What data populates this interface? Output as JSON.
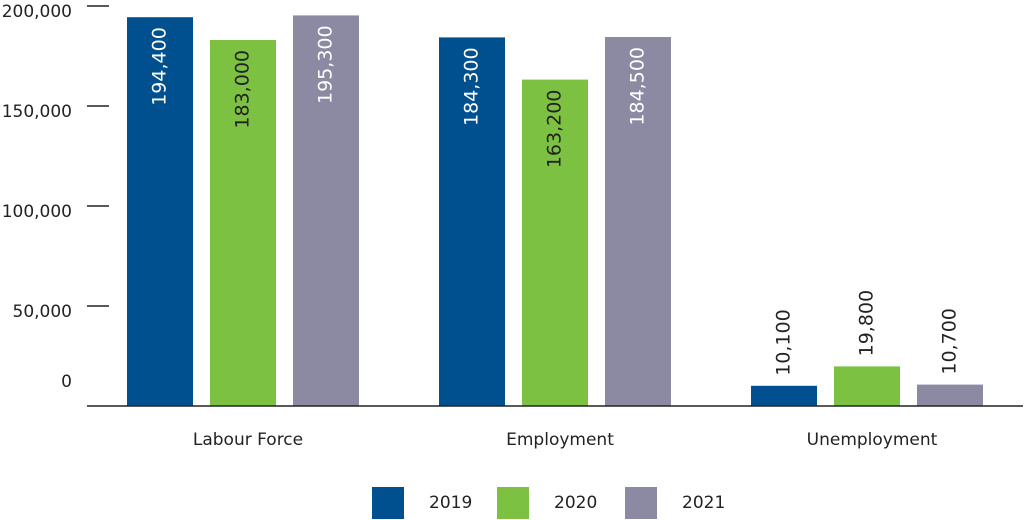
{
  "chart_data": {
    "type": "bar",
    "categories": [
      "Labour Force",
      "Employment",
      "Unemployment"
    ],
    "series": [
      {
        "name": "2019",
        "color": "#00508f",
        "values": [
          194400,
          184300,
          10100
        ],
        "value_labels": [
          "194,400",
          "184,300",
          "10,100"
        ]
      },
      {
        "name": "2020",
        "color": "#7cc142",
        "values": [
          183000,
          163200,
          19800
        ],
        "value_labels": [
          "183,000",
          "163,200",
          "19,800"
        ]
      },
      {
        "name": "2021",
        "color": "#8c8aa3",
        "values": [
          195300,
          184500,
          10700
        ],
        "value_labels": [
          "195,300",
          "184,500",
          "10,700"
        ]
      }
    ],
    "ylim": [
      0,
      200000
    ],
    "yticks": [
      0,
      {
        "value": 50000,
        "label": "50,000"
      },
      {
        "value": 100000,
        "label": "100,000"
      },
      {
        "value": 150000,
        "label": "150,000"
      },
      {
        "value": 200000,
        "label": "200,000"
      }
    ],
    "legend": "bottom"
  }
}
